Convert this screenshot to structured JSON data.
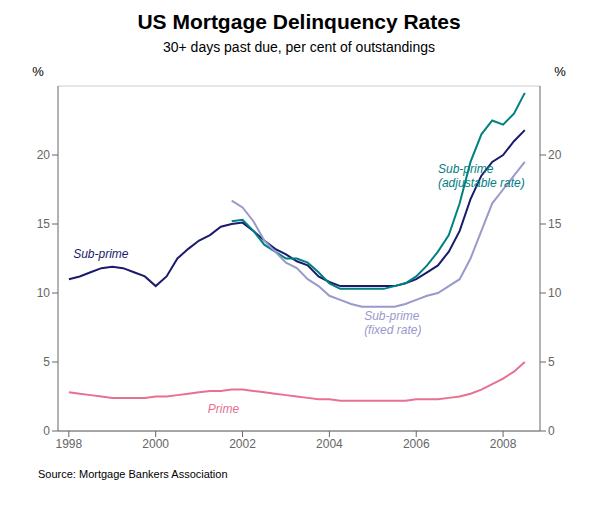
{
  "chart_data": {
    "type": "line",
    "title": "US Mortgage Delinquency Rates",
    "subtitle": "30+ days past due, per cent of outstandings",
    "source": "Source: Mortgage Bankers Association",
    "ylabel": "%",
    "y2label": "%",
    "xlim": [
      1997.75,
      2008.85
    ],
    "xticks": [
      1998,
      2000,
      2002,
      2004,
      2006,
      2008
    ],
    "ylim": [
      0,
      25
    ],
    "yticks": [
      0,
      5,
      10,
      15,
      20
    ],
    "y2lim": [
      0,
      25
    ],
    "y2ticks": [
      0,
      5,
      10,
      15,
      20
    ],
    "grid": true,
    "series": [
      {
        "name": "Sub-prime",
        "color": "#1a1a6e",
        "x": [
          1998.0,
          1998.25,
          1998.5,
          1998.75,
          1999.0,
          1999.25,
          1999.5,
          1999.75,
          2000.0,
          2000.25,
          2000.5,
          2000.75,
          2001.0,
          2001.25,
          2001.5,
          2001.75,
          2002.0,
          2002.25,
          2002.5,
          2002.75,
          2003.0,
          2003.25,
          2003.5,
          2003.75,
          2004.0,
          2004.25,
          2004.5,
          2004.75,
          2005.0,
          2005.25,
          2005.5,
          2005.75,
          2006.0,
          2006.25,
          2006.5,
          2006.75,
          2007.0,
          2007.25,
          2007.5,
          2007.75,
          2008.0,
          2008.25,
          2008.5
        ],
        "values": [
          11.0,
          11.2,
          11.5,
          11.8,
          11.9,
          11.8,
          11.5,
          11.2,
          10.5,
          11.2,
          12.5,
          13.2,
          13.8,
          14.2,
          14.8,
          15.0,
          15.1,
          14.5,
          13.8,
          13.2,
          12.8,
          12.3,
          12.0,
          11.2,
          10.8,
          10.5,
          10.5,
          10.5,
          10.5,
          10.5,
          10.5,
          10.7,
          11.0,
          11.5,
          12.0,
          13.0,
          14.5,
          16.8,
          18.5,
          19.5,
          20.0,
          21.0,
          21.8
        ]
      },
      {
        "name": "Sub-prime\n(adjustable rate)",
        "color": "#008080",
        "x": [
          2001.75,
          2002.0,
          2002.25,
          2002.5,
          2002.75,
          2003.0,
          2003.25,
          2003.5,
          2003.75,
          2004.0,
          2004.25,
          2004.5,
          2004.75,
          2005.0,
          2005.25,
          2005.5,
          2005.75,
          2006.0,
          2006.25,
          2006.5,
          2006.75,
          2007.0,
          2007.25,
          2007.5,
          2007.75,
          2008.0,
          2008.25,
          2008.5
        ],
        "values": [
          15.2,
          15.3,
          14.5,
          13.5,
          13.0,
          12.5,
          12.5,
          12.2,
          11.5,
          10.7,
          10.3,
          10.3,
          10.3,
          10.3,
          10.3,
          10.5,
          10.7,
          11.2,
          12.0,
          13.0,
          14.2,
          16.5,
          19.5,
          21.5,
          22.5,
          22.2,
          23.0,
          24.5
        ]
      },
      {
        "name": "Sub-prime\n(fixed rate)",
        "color": "#9999cc",
        "x": [
          2001.75,
          2002.0,
          2002.25,
          2002.5,
          2002.75,
          2003.0,
          2003.25,
          2003.5,
          2003.75,
          2004.0,
          2004.25,
          2004.5,
          2004.75,
          2005.0,
          2005.25,
          2005.5,
          2005.75,
          2006.0,
          2006.25,
          2006.5,
          2006.75,
          2007.0,
          2007.25,
          2007.5,
          2007.75,
          2008.0,
          2008.25,
          2008.5
        ],
        "values": [
          16.7,
          16.2,
          15.2,
          13.8,
          13.0,
          12.2,
          11.8,
          11.0,
          10.5,
          9.8,
          9.5,
          9.2,
          9.0,
          9.0,
          9.0,
          9.0,
          9.2,
          9.5,
          9.8,
          10.0,
          10.5,
          11.0,
          12.5,
          14.5,
          16.5,
          17.5,
          18.5,
          19.5
        ]
      },
      {
        "name": "Prime",
        "color": "#e87090",
        "x": [
          1998.0,
          1998.25,
          1998.5,
          1998.75,
          1999.0,
          1999.25,
          1999.5,
          1999.75,
          2000.0,
          2000.25,
          2000.5,
          2000.75,
          2001.0,
          2001.25,
          2001.5,
          2001.75,
          2002.0,
          2002.25,
          2002.5,
          2002.75,
          2003.0,
          2003.25,
          2003.5,
          2003.75,
          2004.0,
          2004.25,
          2004.5,
          2004.75,
          2005.0,
          2005.25,
          2005.5,
          2005.75,
          2006.0,
          2006.25,
          2006.5,
          2006.75,
          2007.0,
          2007.25,
          2007.5,
          2007.75,
          2008.0,
          2008.25,
          2008.5
        ],
        "values": [
          2.8,
          2.7,
          2.6,
          2.5,
          2.4,
          2.4,
          2.4,
          2.4,
          2.5,
          2.5,
          2.6,
          2.7,
          2.8,
          2.9,
          2.9,
          3.0,
          3.0,
          2.9,
          2.8,
          2.7,
          2.6,
          2.5,
          2.4,
          2.3,
          2.3,
          2.2,
          2.2,
          2.2,
          2.2,
          2.2,
          2.2,
          2.2,
          2.3,
          2.3,
          2.3,
          2.4,
          2.5,
          2.7,
          3.0,
          3.4,
          3.8,
          4.3,
          5.0
        ]
      }
    ],
    "annotations": [
      {
        "text": "Sub-prime",
        "x": 1998.1,
        "y": 12.8,
        "color": "#1a1a6e"
      },
      {
        "text": "Sub-prime\n(adjustable rate)",
        "x": 2006.5,
        "y": 18.5,
        "color": "#008080"
      },
      {
        "text": "Sub-prime\n(fixed rate)",
        "x": 2004.8,
        "y": 7.8,
        "color": "#9999cc"
      },
      {
        "text": "Prime",
        "x": 2001.2,
        "y": 1.6,
        "color": "#e87090"
      }
    ]
  }
}
